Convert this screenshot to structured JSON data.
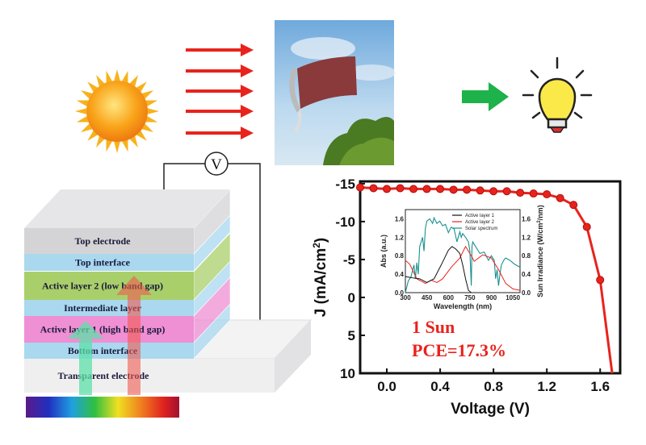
{
  "voltmeter": {
    "symbol": "V"
  },
  "stack": {
    "layers": [
      {
        "label": "Top electrode",
        "color": "#d4d4d6"
      },
      {
        "label": "Top interface",
        "color": "#a9d8ef"
      },
      {
        "label": "Active layer 2 (low band gap)",
        "color": "#a9cf6a"
      },
      {
        "label": "Intermediate layer",
        "color": "#a9d8ef"
      },
      {
        "label": "Active layer 1 (high band gap)",
        "color": "#ef8fd4"
      },
      {
        "label": "Bottom interface",
        "color": "#a9d8ef"
      },
      {
        "label": "Transparent electrode",
        "color": "#efeff0"
      }
    ]
  },
  "icons": [
    "sun-icon",
    "light-arrow-icon",
    "flexible-solar-cell-photo",
    "green-arrow-icon",
    "light-bulb-icon",
    "voltmeter-icon",
    "spectrum-bar"
  ],
  "colors": {
    "jv_curve": "#e8231c",
    "active_layer_1": "#111111",
    "active_layer_2": "#e8231c",
    "solar_spectrum": "#1a9090"
  },
  "annotations": {
    "sun": "1 Sun",
    "pce": "PCE=17.3%"
  },
  "chart_data": [
    {
      "type": "line",
      "xlabel": "Voltage (V)",
      "ylabel": "J (mA/cm2)",
      "ylabel_main": "J (mA/cm",
      "ylabel_sup": "2",
      "ylabel_end": ")",
      "xlim": [
        -0.2,
        1.75
      ],
      "ylim": [
        -15.3,
        10
      ],
      "y_inverted": true,
      "xticks": [
        "0.0",
        "0.4",
        "0.8",
        "1.2",
        "1.6"
      ],
      "xtick_values": [
        0.0,
        0.4,
        0.8,
        1.2,
        1.6
      ],
      "yticks": [
        "-15",
        "-10",
        "-5",
        "0",
        "5",
        "10"
      ],
      "ytick_values": [
        -15,
        -10,
        -5,
        0,
        5,
        10
      ],
      "series": [
        {
          "x": [
            -0.2,
            -0.1,
            0.0,
            0.1,
            0.2,
            0.3,
            0.4,
            0.5,
            0.6,
            0.7,
            0.8,
            0.9,
            1.0,
            1.1,
            1.2,
            1.3,
            1.4,
            1.5,
            1.6
          ],
          "y": [
            -14.5,
            -14.4,
            -14.3,
            -14.4,
            -14.3,
            -14.3,
            -14.3,
            -14.2,
            -14.2,
            -14.1,
            -14.0,
            -14.0,
            -13.8,
            -13.7,
            -13.6,
            -13.1,
            -12.2,
            -9.3,
            -2.3
          ],
          "curve_end": [
            1.69,
            10
          ]
        }
      ]
    },
    {
      "type": "line",
      "xlabel": "Wavelength (nm)",
      "ylabel": "Abs (a.u.)",
      "ylabel_right": "Sun Irradiance (W/cm2/nm)",
      "ylabel_right_main": "Sun Irradiance (W/cm",
      "ylabel_right_sup": "2",
      "ylabel_right_end": "/nm)",
      "xlim": [
        300,
        1100
      ],
      "ylim": [
        0,
        1.8
      ],
      "xticks": [
        "300",
        "450",
        "600",
        "750",
        "900",
        "1050"
      ],
      "xtick_values": [
        300,
        450,
        600,
        750,
        900,
        1050
      ],
      "yticks": [
        "0.0",
        "0.4",
        "0.8",
        "1.2",
        "1.6"
      ],
      "ytick_values": [
        0,
        0.4,
        0.8,
        1.2,
        1.6
      ],
      "legend": "top-right",
      "series": [
        {
          "name": "Active layer 1",
          "x": [
            300,
            350,
            400,
            450,
            500,
            550,
            600,
            625,
            650,
            680,
            700,
            720,
            740,
            760
          ],
          "y": [
            0.35,
            0.32,
            0.3,
            0.22,
            0.3,
            0.6,
            0.92,
            1.0,
            0.95,
            0.85,
            0.6,
            0.3,
            0.05,
            0.0
          ]
        },
        {
          "name": "Active layer 2",
          "x": [
            300,
            330,
            380,
            440,
            480,
            520,
            560,
            620,
            680,
            720,
            760,
            780,
            840,
            900,
            950,
            1000,
            1050,
            1100
          ],
          "y": [
            0.7,
            0.62,
            0.3,
            0.2,
            0.27,
            0.22,
            0.3,
            0.55,
            0.75,
            1.0,
            0.8,
            0.68,
            0.82,
            0.75,
            0.5,
            0.2,
            0.08,
            0.05
          ]
        },
        {
          "name": "Solar spectrum",
          "x": [
            300,
            320,
            340,
            360,
            370,
            380,
            390,
            400,
            410,
            420,
            430,
            440,
            450,
            470,
            490,
            500,
            520,
            540,
            560,
            580,
            600,
            620,
            640,
            660,
            680,
            690,
            700,
            720,
            740,
            750,
            760,
            765,
            770,
            790,
            820,
            850,
            880,
            900,
            920,
            930,
            940,
            950,
            960,
            970,
            990,
            1000,
            1030,
            1060,
            1100
          ],
          "y": [
            0.0,
            0.25,
            0.35,
            0.6,
            0.3,
            0.65,
            0.4,
            1.0,
            1.1,
            1.2,
            0.9,
            1.4,
            1.55,
            1.6,
            1.5,
            1.62,
            1.5,
            1.55,
            1.45,
            1.48,
            1.3,
            1.42,
            1.38,
            1.1,
            1.32,
            1.2,
            1.28,
            1.2,
            1.1,
            0.9,
            0.15,
            1.0,
            1.1,
            1.0,
            0.85,
            0.88,
            0.7,
            0.8,
            0.7,
            0.3,
            0.5,
            0.15,
            0.4,
            0.6,
            0.72,
            0.75,
            0.7,
            0.62,
            0.55
          ]
        }
      ]
    }
  ]
}
